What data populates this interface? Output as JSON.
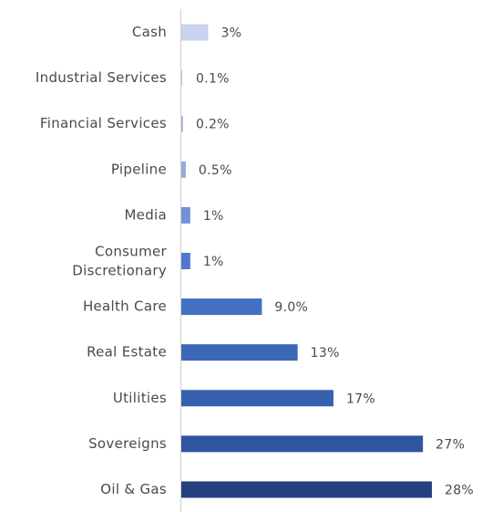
{
  "chart_data": {
    "type": "bar",
    "orientation": "horizontal",
    "categories": [
      "Cash",
      "Industrial Services",
      "Financial Services",
      "Pipeline",
      "Media",
      "Consumer Discretionary",
      "Health Care",
      "Real Estate",
      "Utilities",
      "Sovereigns",
      "Oil & Gas"
    ],
    "values": [
      3,
      0.1,
      0.2,
      0.5,
      1,
      1,
      9.0,
      13,
      17,
      27,
      28
    ],
    "value_labels": [
      "3%",
      "0.1%",
      "0.2%",
      "0.5%",
      "1%",
      "1%",
      "9.0%",
      "13%",
      "17%",
      "27%",
      "28%"
    ],
    "colors": [
      "#c9d3ef",
      "#bcc8ea",
      "#aebde5",
      "#94abdc",
      "#7392d3",
      "#4f78cc",
      "#4370c2",
      "#3c68b8",
      "#3660ad",
      "#2f54a0",
      "#263f7e"
    ]
  }
}
